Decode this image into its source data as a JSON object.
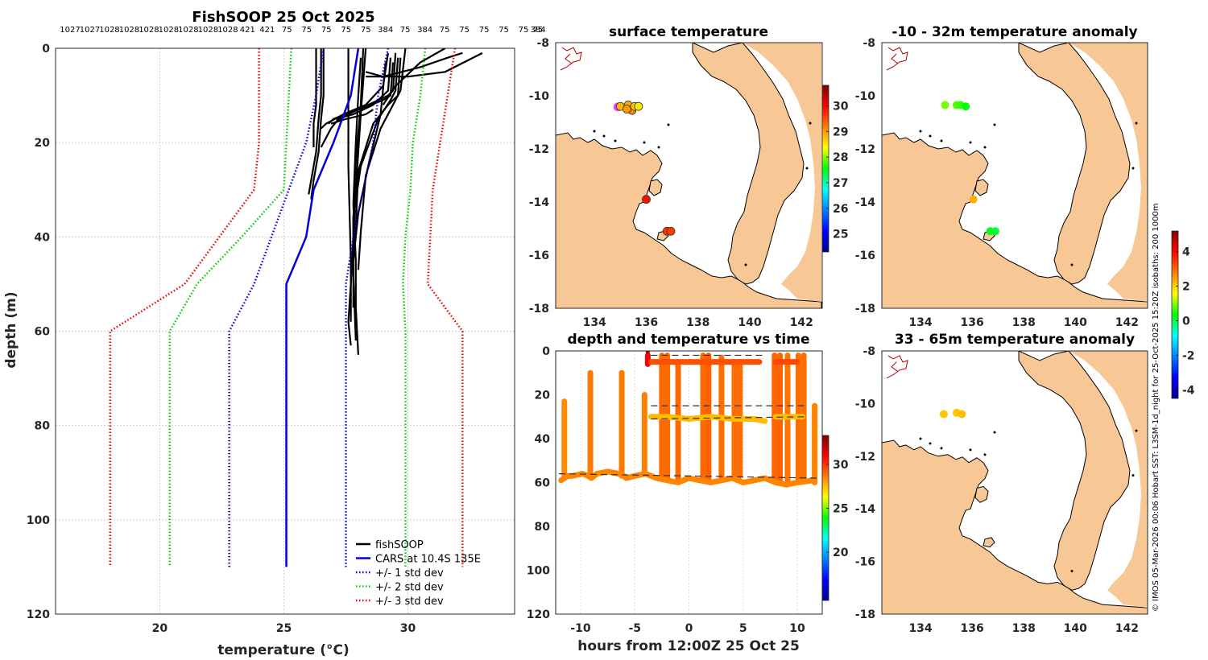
{
  "chart_data": [
    {
      "id": "profile",
      "type": "line",
      "title": "FishSOOP 25 Oct 2025",
      "top_labels": [
        "1027",
        "1027",
        "1028",
        "1028",
        "1028",
        "1028",
        "1028",
        "1028",
        "1028",
        "421",
        "421",
        "75",
        "75",
        "75",
        "75",
        "75",
        "384",
        "75",
        "384",
        "75",
        "75",
        "75",
        "75",
        "75",
        "384",
        "75"
      ],
      "xlabel": "temperature (°C)",
      "ylabel": "depth (m)",
      "xlim": [
        15.8,
        34.3
      ],
      "ylim": [
        120,
        0
      ],
      "xticks": [
        20,
        25,
        30
      ],
      "yticks": [
        0,
        20,
        40,
        60,
        80,
        100,
        120
      ],
      "legend_position": "bottom-right",
      "legend": [
        "fishSOOP",
        "CARS at 10.4S 135E",
        "+/- 1 std dev",
        "+/- 2 std dev",
        "+/- 3 std dev"
      ],
      "series": [
        {
          "name": "CARS mean",
          "color": "#0000dd",
          "style": "solid",
          "temp": [
            28.0,
            27.7,
            27.0,
            26.2,
            25.9,
            25.1,
            25.1,
            25.1
          ],
          "depth": [
            0,
            10,
            20,
            30,
            40,
            50,
            60,
            110
          ]
        },
        {
          "name": "-1 std",
          "color": "#0000dd",
          "style": "dotted",
          "temp": [
            26.6,
            26.3,
            25.9,
            25.2,
            24.5,
            23.8,
            22.8,
            22.8
          ],
          "depth": [
            0,
            10,
            20,
            30,
            40,
            50,
            60,
            110
          ]
        },
        {
          "name": "+1 std",
          "color": "#0000dd",
          "style": "dotted",
          "temp": [
            29.2,
            28.8,
            28.6,
            28.2,
            27.8,
            27.5,
            27.5,
            27.5
          ],
          "depth": [
            0,
            10,
            20,
            30,
            40,
            50,
            60,
            110
          ]
        },
        {
          "name": "-2 std",
          "color": "#00cc00",
          "style": "dotted",
          "temp": [
            25.3,
            25.2,
            25.1,
            25.0,
            23.3,
            21.5,
            20.4,
            20.4
          ],
          "depth": [
            0,
            10,
            20,
            30,
            40,
            50,
            60,
            110
          ]
        },
        {
          "name": "+2 std",
          "color": "#00cc00",
          "style": "dotted",
          "temp": [
            30.7,
            30.5,
            30.2,
            30.1,
            29.9,
            29.8,
            29.9,
            29.9
          ],
          "depth": [
            0,
            10,
            20,
            30,
            40,
            50,
            60,
            110
          ]
        },
        {
          "name": "-3 std",
          "color": "#ee0000",
          "style": "dotted",
          "temp": [
            24.0,
            24.0,
            24.0,
            23.8,
            22.4,
            21.0,
            18.0,
            18.0
          ],
          "depth": [
            0,
            10,
            20,
            30,
            40,
            50,
            60,
            110
          ]
        },
        {
          "name": "+3 std",
          "color": "#ee0000",
          "style": "dotted",
          "temp": [
            31.9,
            31.6,
            31.3,
            31.0,
            30.9,
            30.8,
            32.2,
            32.2
          ],
          "depth": [
            0,
            10,
            20,
            30,
            40,
            50,
            60,
            110
          ]
        }
      ],
      "fishsoop_profiles": [
        {
          "temp": [
            26.5,
            26.5,
            26.4,
            26.3,
            26.1,
            26.0
          ],
          "depth": [
            0,
            10,
            15,
            22,
            28,
            31
          ]
        },
        {
          "temp": [
            26.6,
            26.6,
            26.5,
            26.4,
            26.2,
            26.1
          ],
          "depth": [
            0,
            10,
            15,
            22,
            28,
            32
          ]
        },
        {
          "temp": [
            26.3,
            26.3,
            26.2,
            26.2
          ],
          "depth": [
            0,
            12,
            16,
            21
          ]
        },
        {
          "temp": [
            27.2,
            26.9,
            26.6,
            26.5
          ],
          "depth": [
            15,
            17,
            20,
            21
          ]
        },
        {
          "temp": [
            28.6,
            28.3,
            27.5,
            26.9
          ],
          "depth": [
            13,
            14,
            15,
            16
          ]
        },
        {
          "temp": [
            29.2,
            29.0,
            28.3,
            27.4,
            26.7,
            26.5
          ],
          "depth": [
            1,
            8,
            12,
            14,
            16,
            17
          ]
        },
        {
          "temp": [
            29.3,
            29.2,
            28.6,
            27.8,
            27.1
          ],
          "depth": [
            2,
            9,
            12,
            14,
            15
          ]
        },
        {
          "temp": [
            29.4,
            29.3,
            29.0,
            28.0,
            27.0,
            26.8
          ],
          "depth": [
            3,
            10,
            11,
            13,
            15,
            16
          ]
        },
        {
          "temp": [
            29.5,
            29.4,
            29.2,
            28.4,
            27.6,
            27.0
          ],
          "depth": [
            1,
            9,
            10,
            12,
            14,
            16
          ]
        },
        {
          "temp": [
            29.6,
            29.5,
            29.3,
            28.8,
            28.1,
            27.8,
            27.8
          ],
          "depth": [
            2,
            9,
            11,
            15,
            25,
            36,
            42
          ]
        },
        {
          "temp": [
            29.7,
            29.6,
            29.2,
            28.6,
            28.0,
            27.9,
            27.8
          ],
          "depth": [
            2,
            10,
            12,
            16,
            26,
            38,
            45
          ]
        },
        {
          "temp": [
            29.9,
            29.7,
            29.4,
            28.9,
            28.3,
            28.1,
            28.0
          ],
          "depth": [
            0,
            9,
            12,
            17,
            27,
            39,
            47
          ]
        },
        {
          "temp": [
            29.1,
            28.9,
            28.4,
            28.0,
            27.8,
            27.8
          ],
          "depth": [
            3,
            14,
            25,
            35,
            45,
            55
          ]
        },
        {
          "temp": [
            28.3,
            28.1,
            27.9,
            27.8,
            27.7,
            27.6,
            27.7
          ],
          "depth": [
            0,
            14,
            30,
            40,
            50,
            58,
            63
          ]
        },
        {
          "temp": [
            28.1,
            28.0,
            27.9,
            27.8,
            27.9,
            27.9,
            28.0
          ],
          "depth": [
            2,
            10,
            20,
            33,
            45,
            55,
            65
          ]
        },
        {
          "temp": [
            28.2,
            28.1,
            27.9,
            27.8,
            27.8,
            27.9
          ],
          "depth": [
            0,
            12,
            24,
            36,
            48,
            62
          ]
        },
        {
          "temp": [
            28.3,
            29.0,
            30.5,
            31.6,
            32.2
          ],
          "depth": [
            5,
            6,
            4,
            2,
            1
          ]
        },
        {
          "temp": [
            28.3,
            30.0,
            31.5,
            33.0,
            31.5
          ],
          "depth": [
            6,
            6,
            5,
            1,
            5
          ]
        },
        {
          "temp": [
            27.6,
            27.6,
            27.7,
            27.7
          ],
          "depth": [
            0,
            25,
            45,
            58
          ]
        },
        {
          "temp": [
            31.5,
            30.5,
            29.5,
            29.0
          ],
          "depth": [
            0,
            3,
            8,
            12
          ]
        }
      ]
    },
    {
      "id": "sst_map",
      "type": "scatter",
      "title": "surface temperature",
      "xlim": [
        132.5,
        142.8
      ],
      "ylim": [
        -18,
        -8
      ],
      "xticks": [
        134,
        136,
        138,
        140,
        142
      ],
      "yticks": [
        -8,
        -10,
        -12,
        -14,
        -16,
        -18
      ],
      "colorbar": {
        "min": 24.3,
        "max": 30.8,
        "ticks": [
          25,
          26,
          27,
          28,
          29,
          30
        ]
      },
      "points": [
        {
          "lon": 134.9,
          "lat": -10.42,
          "value": 31.5,
          "marker": "magenta"
        },
        {
          "lon": 135.0,
          "lat": -10.4,
          "value": 28.8
        },
        {
          "lon": 135.3,
          "lat": -10.35,
          "value": 28.9
        },
        {
          "lon": 135.45,
          "lat": -10.55,
          "value": 29.1
        },
        {
          "lon": 135.55,
          "lat": -10.4,
          "value": 28.7
        },
        {
          "lon": 135.7,
          "lat": -10.4,
          "value": 28.5
        },
        {
          "lon": 135.25,
          "lat": -10.5,
          "value": 29.0
        },
        {
          "lon": 136.0,
          "lat": -13.9,
          "value": 29.9
        },
        {
          "lon": 136.8,
          "lat": -15.1,
          "value": 29.7
        },
        {
          "lon": 136.95,
          "lat": -15.1,
          "value": 29.6
        }
      ]
    },
    {
      "id": "depth_time",
      "type": "scatter",
      "title": "depth and temperature vs time",
      "xlabel": "hours from 12:00Z 25 Oct 25",
      "xlim": [
        -12.3,
        12.3
      ],
      "ylim": [
        120,
        0
      ],
      "xticks": [
        -10,
        -5,
        0,
        5,
        10
      ],
      "yticks": [
        0,
        20,
        40,
        60,
        80,
        100,
        120
      ],
      "colorbar": {
        "min": 14.5,
        "max": 33.3,
        "ticks": [
          20,
          25,
          30
        ]
      },
      "tracks": [
        {
          "x": [
            -11.8,
            -11.5,
            -11.2,
            -10.8,
            -9.8,
            -9.3,
            -9.0,
            -8.5,
            -7.5,
            -6.5,
            -6.0,
            -5.8,
            -5.0,
            -4.0,
            -3.0,
            -2.0,
            -1.0,
            0.0,
            1.0,
            2.0,
            3.0,
            4.0,
            5.0,
            6.0,
            7.0,
            8.0,
            9.0,
            10.0,
            11.5
          ],
          "depth": [
            59,
            58,
            57,
            57,
            56,
            57,
            58,
            56,
            55,
            56,
            57,
            58,
            57,
            56,
            58,
            59,
            60,
            58,
            59,
            60,
            59,
            58,
            60,
            59,
            58,
            60,
            61,
            60,
            59
          ],
          "value": 28.5
        },
        {
          "x": [
            -3.5,
            -2.5,
            -1.0,
            0.5,
            2.0,
            3.5,
            5.0,
            6.5
          ],
          "depth": [
            5,
            5,
            5,
            5,
            5,
            5,
            5,
            5
          ],
          "value": 29.5
        },
        {
          "x": [
            -3.5,
            -2.0,
            0.0,
            2.0,
            4.0,
            6.0,
            7.0
          ],
          "depth": [
            30,
            30,
            31,
            30,
            31,
            31,
            32
          ],
          "value": 27.5
        },
        {
          "x": [
            8.0,
            9.0,
            10.0,
            10.5
          ],
          "depth": [
            30,
            30,
            30,
            30
          ],
          "value": 27.5
        },
        {
          "x": [
            8.0,
            9.0,
            10.0
          ],
          "depth": [
            5,
            5,
            5
          ],
          "value": 29.6
        }
      ],
      "casts": [
        {
          "x": -11.5,
          "top": 23,
          "bottom": 58,
          "value": 28.4
        },
        {
          "x": -9.1,
          "top": 10,
          "bottom": 57,
          "value": 28.7
        },
        {
          "x": -6.2,
          "top": 10,
          "bottom": 57,
          "value": 28.7
        },
        {
          "x": -4.1,
          "top": 20,
          "bottom": 56,
          "value": 28.6
        },
        {
          "x": -2.5,
          "top": 2,
          "bottom": 58,
          "value": 29.0
        },
        {
          "x": -2.0,
          "top": 2,
          "bottom": 58,
          "value": 29.0
        },
        {
          "x": -1.0,
          "top": 5,
          "bottom": 58,
          "value": 29.0
        },
        {
          "x": 1.3,
          "top": 2,
          "bottom": 59,
          "value": 29.0
        },
        {
          "x": 1.8,
          "top": 2,
          "bottom": 59,
          "value": 29.2
        },
        {
          "x": 3.0,
          "top": 3,
          "bottom": 59,
          "value": 28.9
        },
        {
          "x": 4.2,
          "top": 5,
          "bottom": 57,
          "value": 28.9
        },
        {
          "x": 4.7,
          "top": 5,
          "bottom": 57,
          "value": 28.9
        },
        {
          "x": 7.9,
          "top": 2,
          "bottom": 59,
          "value": 29.1
        },
        {
          "x": 8.4,
          "top": 2,
          "bottom": 59,
          "value": 29.1
        },
        {
          "x": 9.1,
          "top": 2,
          "bottom": 59,
          "value": 28.8
        },
        {
          "x": 10.1,
          "top": 2,
          "bottom": 59,
          "value": 28.9
        },
        {
          "x": 10.6,
          "top": 2,
          "bottom": 59,
          "value": 28.9
        },
        {
          "x": 11.6,
          "top": 25,
          "bottom": 60,
          "value": 28.5
        },
        {
          "x": -3.8,
          "top": 2,
          "bottom": 6,
          "value": 31.0
        }
      ],
      "dashed_lines": [
        {
          "x": [
            -12,
            12
          ],
          "depth": [
            56,
            58
          ]
        },
        {
          "x": [
            -3.5,
            7
          ],
          "depth": [
            2,
            2
          ]
        },
        {
          "x": [
            -3.5,
            11
          ],
          "depth": [
            25,
            25
          ]
        },
        {
          "x": [
            -3.5,
            11
          ],
          "depth": [
            31,
            30
          ]
        }
      ]
    },
    {
      "id": "anom_shallow",
      "type": "scatter",
      "title": "-10 - 32m temperature anomaly",
      "xlim": [
        132.5,
        142.8
      ],
      "ylim": [
        -18,
        -8
      ],
      "xticks": [
        134,
        136,
        138,
        140,
        142
      ],
      "yticks": [
        -8,
        -10,
        -12,
        -14,
        -16,
        -18
      ],
      "colorbar": {
        "min": -4.5,
        "max": 5.2,
        "ticks": [
          -4,
          -2,
          0,
          2,
          4
        ]
      },
      "points": [
        {
          "lon": 134.95,
          "lat": -10.35,
          "value": 0.9
        },
        {
          "lon": 135.4,
          "lat": -10.35,
          "value": 0.7
        },
        {
          "lon": 135.55,
          "lat": -10.35,
          "value": 0.6
        },
        {
          "lon": 135.75,
          "lat": -10.4,
          "value": 0.3
        },
        {
          "lon": 136.05,
          "lat": -13.9,
          "value": 2.3
        },
        {
          "lon": 136.7,
          "lat": -15.1,
          "value": 0.2
        },
        {
          "lon": 136.9,
          "lat": -15.1,
          "value": 0.1
        }
      ]
    },
    {
      "id": "anom_deep",
      "type": "scatter",
      "title": "33 - 65m temperature anomaly",
      "xlim": [
        132.5,
        142.8
      ],
      "ylim": [
        -18,
        -8
      ],
      "xticks": [
        134,
        136,
        138,
        140,
        142
      ],
      "yticks": [
        -8,
        -10,
        -12,
        -14,
        -16,
        -18
      ],
      "points": [
        {
          "lon": 134.9,
          "lat": -10.4,
          "value": 2.1
        },
        {
          "lon": 135.4,
          "lat": -10.35,
          "value": 2.1
        },
        {
          "lon": 135.6,
          "lat": -10.4,
          "value": 2.2
        }
      ]
    }
  ],
  "credit": "© IMOS 05-Mar-2026 00:06 Hobart SST: L3SM-1d_night for 25-Oct-2025 15:20Z isobaths: 200  1000m",
  "colors": {
    "land": "#f7c895",
    "coast": "#000000",
    "river": "#b00000",
    "grid": "#cfcfcf",
    "axis_text": "#262626"
  }
}
